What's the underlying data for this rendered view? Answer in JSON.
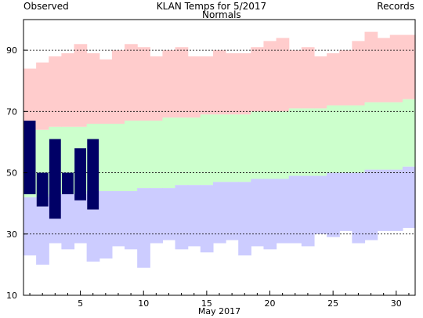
{
  "chart_data": {
    "type": "bar",
    "title": "KLAN Temps for 5/2017",
    "xlabel": "May 2017",
    "ylabel": "",
    "xlim": [
      1,
      31
    ],
    "ylim": [
      10,
      100
    ],
    "yticks": [
      10,
      30,
      50,
      70,
      90
    ],
    "xticks": [
      5,
      10,
      15,
      20,
      25,
      30
    ],
    "grid_values": [
      30,
      50,
      70,
      90
    ],
    "legend": [
      {
        "name": "Observed",
        "color": "#000066"
      },
      {
        "name": "Normals",
        "color": "#007700"
      },
      {
        "name": "Records",
        "color": "#cc88cc"
      }
    ],
    "colors": {
      "record_high_band": "#ffcccc",
      "normal_band": "#ccffcc",
      "record_low_band": "#ccccff",
      "observed": "#000066"
    },
    "days": [
      1,
      2,
      3,
      4,
      5,
      6,
      7,
      8,
      9,
      10,
      11,
      12,
      13,
      14,
      15,
      16,
      17,
      18,
      19,
      20,
      21,
      22,
      23,
      24,
      25,
      26,
      27,
      28,
      29,
      30,
      31
    ],
    "series": [
      {
        "name": "Record High",
        "values": [
          84,
          86,
          88,
          89,
          92,
          89,
          87,
          90,
          92,
          91,
          88,
          90,
          91,
          88,
          88,
          90,
          89,
          89,
          91,
          93,
          94,
          90,
          91,
          88,
          89,
          90,
          93,
          96,
          94,
          95,
          95
        ]
      },
      {
        "name": "Normal High",
        "values": [
          64,
          64,
          65,
          65,
          65,
          66,
          66,
          66,
          67,
          67,
          67,
          68,
          68,
          68,
          69,
          69,
          69,
          69,
          70,
          70,
          70,
          71,
          71,
          71,
          72,
          72,
          72,
          73,
          73,
          73,
          74
        ]
      },
      {
        "name": "Normal Low",
        "values": [
          42,
          42,
          43,
          43,
          43,
          44,
          44,
          44,
          44,
          45,
          45,
          45,
          46,
          46,
          46,
          47,
          47,
          47,
          48,
          48,
          48,
          49,
          49,
          49,
          50,
          50,
          50,
          51,
          51,
          51,
          52
        ]
      },
      {
        "name": "Record Low",
        "values": [
          23,
          20,
          27,
          25,
          27,
          21,
          22,
          26,
          25,
          19,
          27,
          28,
          25,
          26,
          24,
          27,
          28,
          23,
          26,
          25,
          27,
          27,
          26,
          30,
          29,
          31,
          27,
          28,
          31,
          31,
          32
        ]
      },
      {
        "name": "Observed High",
        "values": [
          67,
          50,
          61,
          50,
          58,
          61,
          null,
          null,
          null,
          null,
          null,
          null,
          null,
          null,
          null,
          null,
          null,
          null,
          null,
          null,
          null,
          null,
          null,
          null,
          null,
          null,
          null,
          null,
          null,
          null,
          null
        ]
      },
      {
        "name": "Observed Low",
        "values": [
          43,
          39,
          35,
          43,
          41,
          38,
          null,
          null,
          null,
          null,
          null,
          null,
          null,
          null,
          null,
          null,
          null,
          null,
          null,
          null,
          null,
          null,
          null,
          null,
          null,
          null,
          null,
          null,
          null,
          null,
          null
        ]
      }
    ]
  }
}
